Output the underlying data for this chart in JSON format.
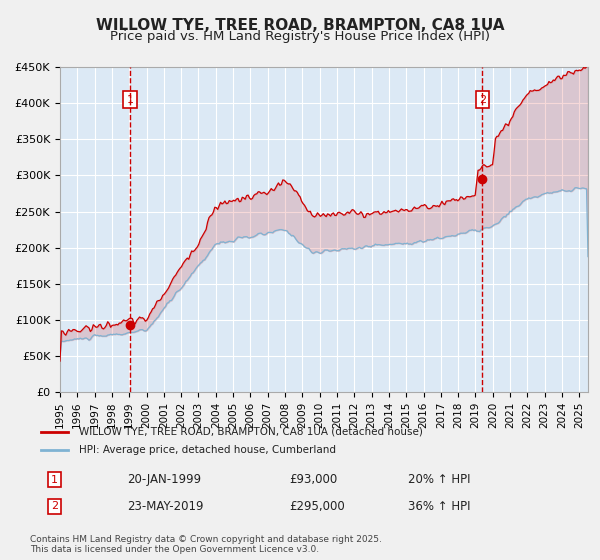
{
  "title": "WILLOW TYE, TREE ROAD, BRAMPTON, CA8 1UA",
  "subtitle": "Price paid vs. HM Land Registry's House Price Index (HPI)",
  "bg_color": "#dce9f5",
  "plot_bg_color": "#dce9f5",
  "red_color": "#cc0000",
  "blue_color": "#7fb3d3",
  "grid_color": "#ffffff",
  "vline_color": "#cc0000",
  "ylim": [
    0,
    450000
  ],
  "yticks": [
    0,
    50000,
    100000,
    150000,
    200000,
    250000,
    300000,
    350000,
    400000,
    450000
  ],
  "xlim_start": 1995.0,
  "xlim_end": 2025.5,
  "marker1_x": 1999.05,
  "marker1_y": 93000,
  "marker2_x": 2019.4,
  "marker2_y": 295000,
  "label1_num": "1",
  "label2_num": "2",
  "legend_label_red": "WILLOW TYE, TREE ROAD, BRAMPTON, CA8 1UA (detached house)",
  "legend_label_blue": "HPI: Average price, detached house, Cumberland",
  "table_row1": [
    "1",
    "20-JAN-1999",
    "£93,000",
    "20% ↑ HPI"
  ],
  "table_row2": [
    "2",
    "23-MAY-2019",
    "£295,000",
    "36% ↑ HPI"
  ],
  "footer": "Contains HM Land Registry data © Crown copyright and database right 2025.\nThis data is licensed under the Open Government Licence v3.0.",
  "title_fontsize": 11,
  "subtitle_fontsize": 9.5
}
